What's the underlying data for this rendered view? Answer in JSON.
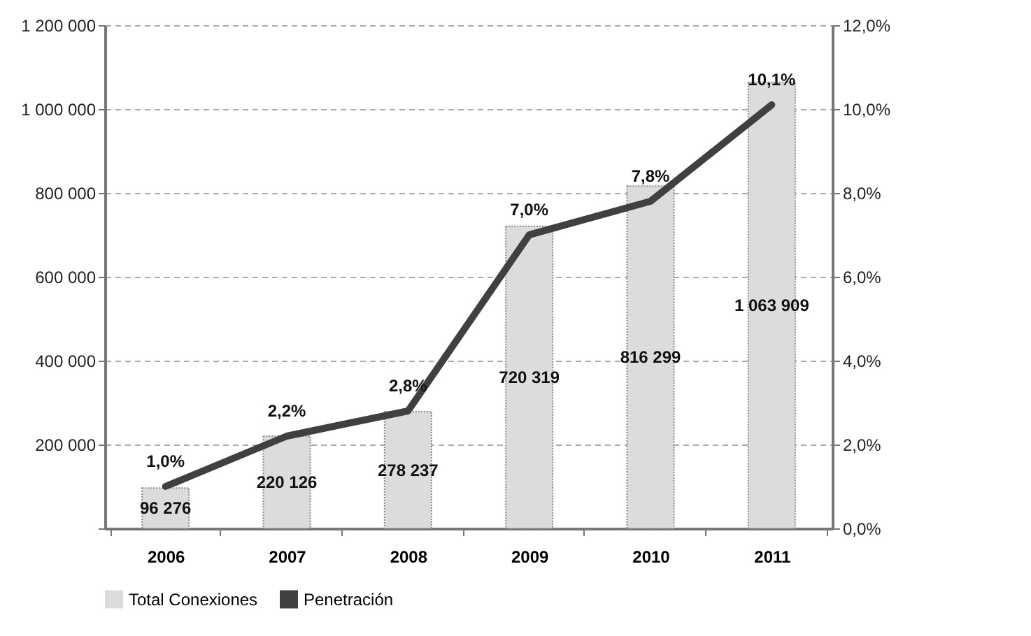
{
  "chart_data": {
    "type": "bar",
    "categories": [
      "2006",
      "2007",
      "2008",
      "2009",
      "2010",
      "2011"
    ],
    "series": [
      {
        "name": "Total Conexiones",
        "color": "#dcdcdc",
        "values": [
          96276,
          220126,
          278237,
          720319,
          816299,
          1063909
        ],
        "value_labels": [
          "96 276",
          "220 126",
          "278 237",
          "720 319",
          "816 299",
          "1 063 909"
        ]
      },
      {
        "name": "Penetración",
        "type": "line",
        "axis": "y2",
        "color": "#404040",
        "values": [
          1.0,
          2.2,
          2.8,
          7.0,
          7.8,
          10.1
        ],
        "value_labels": [
          "1,0%",
          "2,2%",
          "2,8%",
          "7,0%",
          "7,8%",
          "10,1%"
        ]
      }
    ],
    "ylim": [
      0,
      1200000
    ],
    "yticks": [
      {
        "value": 0,
        "label": null
      },
      {
        "value": 200000,
        "label": "200 000"
      },
      {
        "value": 400000,
        "label": "400 000"
      },
      {
        "value": 600000,
        "label": "600 000"
      },
      {
        "value": 800000,
        "label": "800 000"
      },
      {
        "value": 1000000,
        "label": "1 000 000"
      },
      {
        "value": 1200000,
        "label": "1 200 000"
      }
    ],
    "y2lim": [
      0,
      12
    ],
    "y2ticks": [
      {
        "value": 0,
        "label": "0,0%"
      },
      {
        "value": 2,
        "label": "2,0%"
      },
      {
        "value": 4,
        "label": "4,0%"
      },
      {
        "value": 6,
        "label": "6,0%"
      },
      {
        "value": 8,
        "label": "8,0%"
      },
      {
        "value": 10,
        "label": "10,0%"
      },
      {
        "value": 12,
        "label": "12,0%"
      }
    ],
    "grid": "y",
    "legend": "bottom",
    "marker": "none",
    "line_style": "solid"
  }
}
